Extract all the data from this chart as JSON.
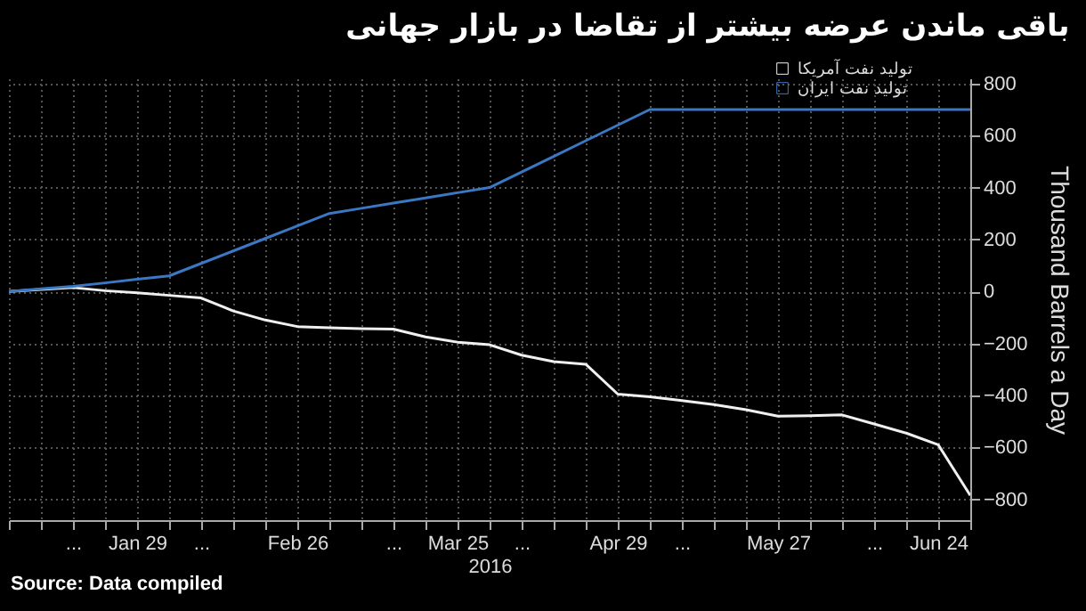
{
  "chart_data": {
    "type": "line",
    "title": "باقی ماندن عرضه بیشتر از تقاضا در بازار جهانی",
    "xlabel": "2016",
    "ylabel": "Thousand Barrels a Day",
    "categories": [
      null,
      null,
      "...",
      null,
      "Jan 29",
      null,
      "...",
      null,
      null,
      "Feb 26",
      null,
      null,
      "...",
      null,
      "Mar 25",
      null,
      "...",
      null,
      null,
      "Apr 29",
      null,
      "...",
      null,
      null,
      "May 27",
      null,
      null,
      "...",
      null,
      "Jun 24",
      null
    ],
    "series": [
      {
        "name": "تولید نفت آمریکا",
        "color": "#f0f0f0",
        "values": [
          0,
          8,
          15,
          3,
          -5,
          -15,
          -25,
          -75,
          -110,
          -135,
          -140,
          -143,
          -145,
          -175,
          -195,
          -205,
          -245,
          -270,
          -280,
          -395,
          -405,
          -420,
          -435,
          -455,
          -480,
          -478,
          -475,
          -510,
          -545,
          -590,
          -785
        ]
      },
      {
        "name": "تولید نفت ایران",
        "color": "#3b78c4",
        "values": [
          0,
          10,
          20,
          33,
          47,
          60,
          108,
          156,
          204,
          252,
          300,
          320,
          340,
          360,
          380,
          400,
          460,
          520,
          580,
          640,
          700,
          700,
          700,
          700,
          700,
          700,
          700,
          700,
          700,
          700,
          700
        ]
      }
    ],
    "ylim": [
      -880,
      820
    ],
    "yticks": [
      -800,
      -600,
      -400,
      -200,
      0,
      200,
      400,
      600,
      800
    ],
    "grid": true,
    "legend": "top right",
    "annotations": [
      "Source: Data compiled"
    ]
  }
}
